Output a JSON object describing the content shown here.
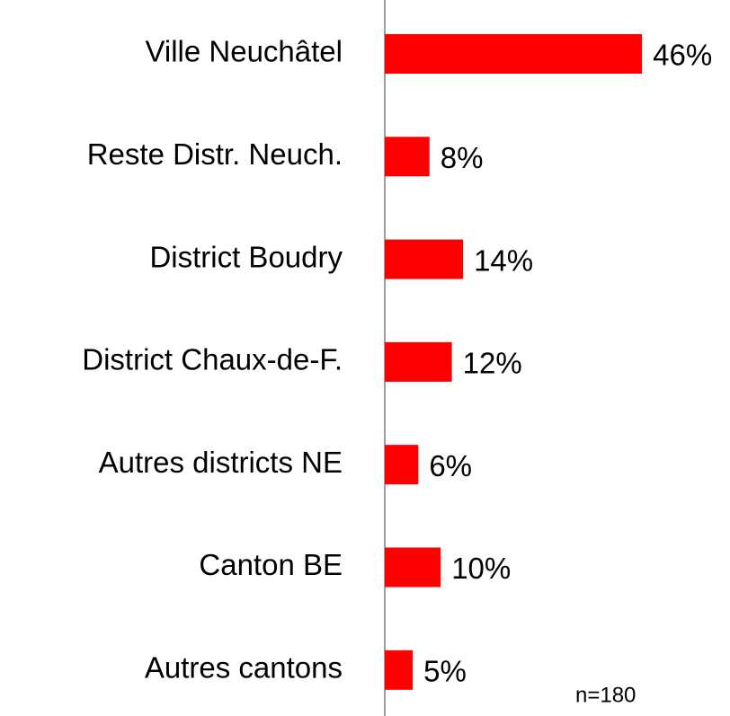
{
  "chart_data": {
    "type": "bar",
    "orientation": "horizontal",
    "categories": [
      "Ville Neuchâtel",
      "Reste Distr. Neuch.",
      "District Boudry",
      "District Chaux-de-F.",
      "Autres districts NE",
      "Canton BE",
      "Autres cantons"
    ],
    "values": [
      46,
      8,
      14,
      12,
      6,
      10,
      5
    ],
    "value_labels": [
      "46%",
      "8%",
      "14%",
      "12%",
      "6%",
      "10%",
      "5%"
    ],
    "color": "#ff0000",
    "annotation": "n=180"
  }
}
